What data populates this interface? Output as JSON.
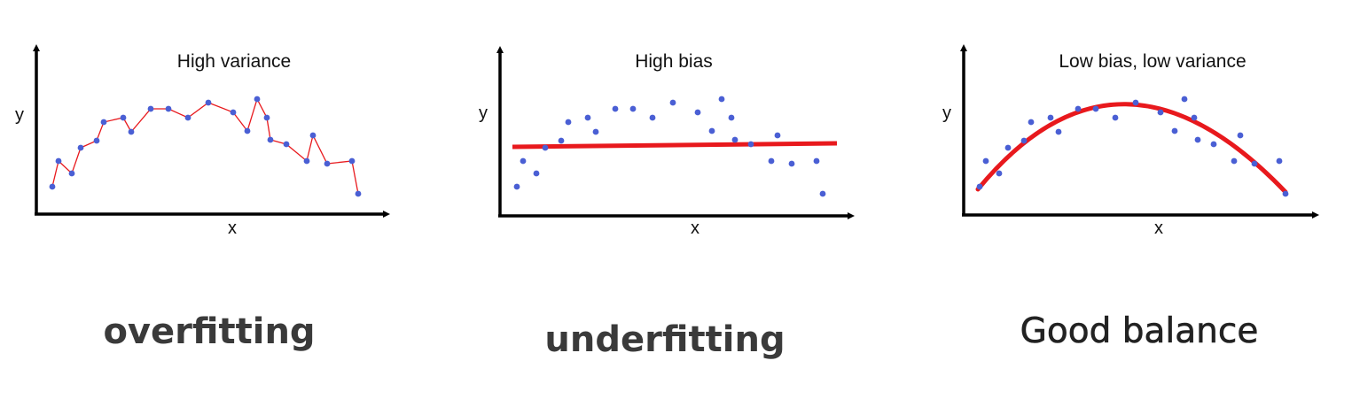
{
  "colors": {
    "axis": "#000000",
    "point": "#4a5fd4",
    "fit": "#e8191d",
    "overfit_line": "#e8191d",
    "caption": "#3a3a3a"
  },
  "panels": [
    {
      "id": "overfitting",
      "title": "High variance",
      "x_label": "x",
      "y_label": "y",
      "caption": "overfitting",
      "fit": "interpolate"
    },
    {
      "id": "underfitting",
      "title": "High bias",
      "x_label": "x",
      "y_label": "y",
      "caption": "underfitting",
      "fit": "line"
    },
    {
      "id": "good-balance",
      "title": "Low bias, low variance",
      "x_label": "x",
      "y_label": "y",
      "caption": "Good balance",
      "fit": "curve"
    }
  ]
}
